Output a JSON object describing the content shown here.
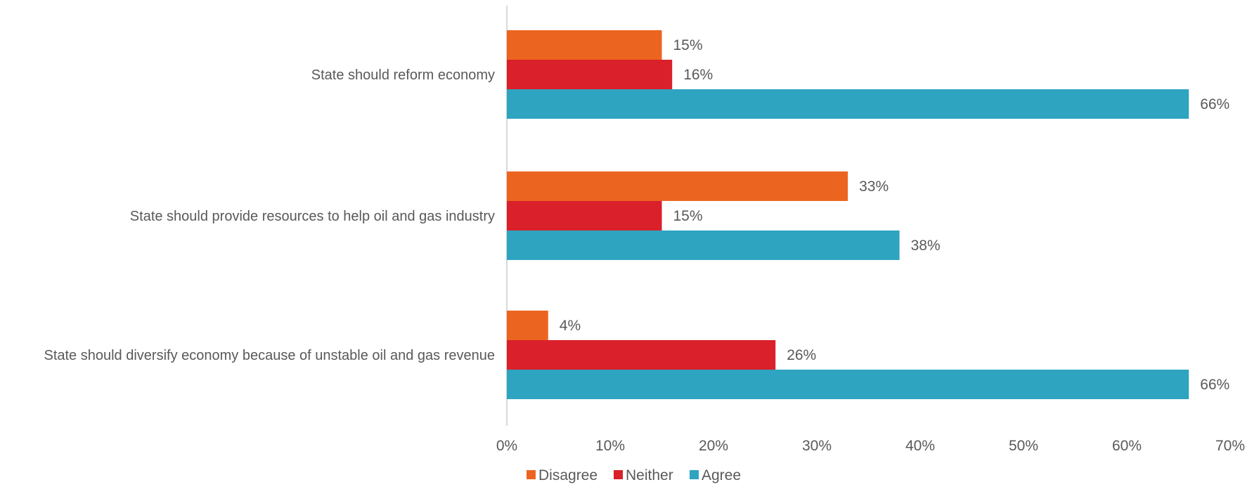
{
  "chart_data": {
    "type": "bar",
    "orientation": "horizontal",
    "categories": [
      "State should reform economy",
      "State should provide resources to help oil and gas industry",
      "State should diversify economy because of unstable oil and gas revenue"
    ],
    "series": [
      {
        "name": "Disagree",
        "color": "#ec6520",
        "values": [
          15,
          33,
          4
        ]
      },
      {
        "name": "Neither",
        "color": "#da202a",
        "values": [
          16,
          15,
          26
        ]
      },
      {
        "name": "Agree",
        "color": "#2ea4c0",
        "values": [
          66,
          38,
          66
        ]
      }
    ],
    "value_suffix": "%",
    "xlim": [
      0,
      70
    ],
    "xticks": [
      0,
      10,
      20,
      30,
      40,
      50,
      60,
      70
    ],
    "xtick_labels": [
      "0%",
      "10%",
      "20%",
      "30%",
      "40%",
      "50%",
      "60%",
      "70%"
    ],
    "grid": false,
    "legend_position": "bottom"
  }
}
